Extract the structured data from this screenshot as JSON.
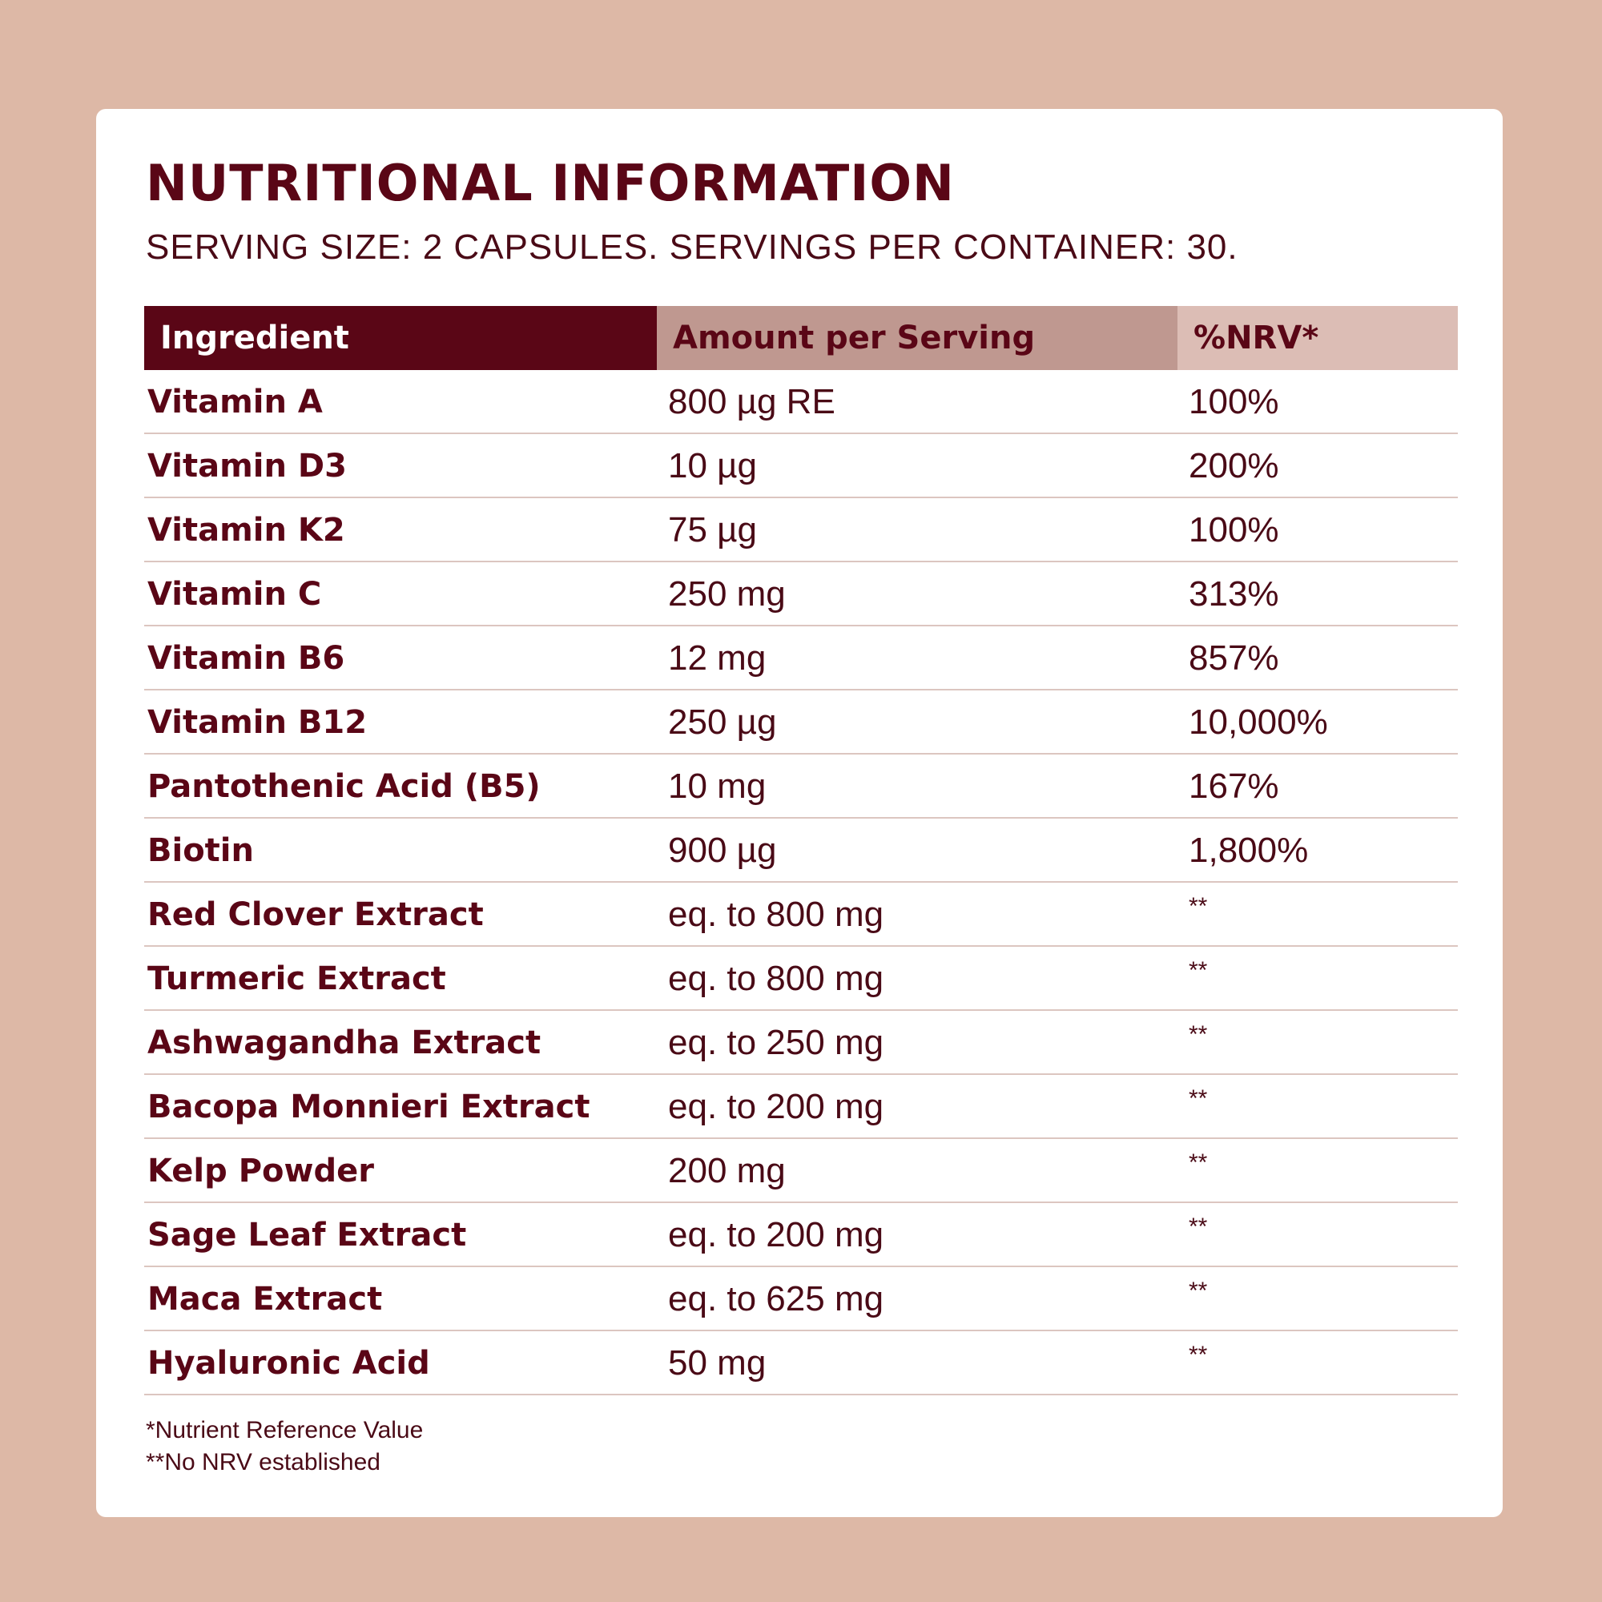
{
  "title": "NUTRITIONAL INFORMATION",
  "subtitle": "SERVING SIZE: 2 CAPSULES. SERVINGS PER CONTAINER: 30.",
  "table": {
    "headers": {
      "ingredient": "Ingredient",
      "amount": "Amount per Serving",
      "nrv": "%NRV*"
    },
    "rows": [
      {
        "ingredient": "Vitamin A",
        "amount": "800 µg RE",
        "nrv": "100%"
      },
      {
        "ingredient": "Vitamin D3",
        "amount": "10 µg",
        "nrv": "200%"
      },
      {
        "ingredient": "Vitamin K2",
        "amount": "75 µg",
        "nrv": "100%"
      },
      {
        "ingredient": "Vitamin C",
        "amount": "250 mg",
        "nrv": "313%"
      },
      {
        "ingredient": "Vitamin B6",
        "amount": "12 mg",
        "nrv": "857%"
      },
      {
        "ingredient": "Vitamin B12",
        "amount": "250 µg",
        "nrv": "10,000%"
      },
      {
        "ingredient": "Pantothenic Acid (B5)",
        "amount": "10 mg",
        "nrv": "167%"
      },
      {
        "ingredient": "Biotin",
        "amount": "900 µg",
        "nrv": "1,800%"
      },
      {
        "ingredient": "Red Clover Extract",
        "amount": "eq. to 800 mg",
        "nrv": "**"
      },
      {
        "ingredient": "Turmeric Extract",
        "amount": "eq. to 800 mg",
        "nrv": "**"
      },
      {
        "ingredient": "Ashwagandha Extract",
        "amount": "eq. to 250 mg",
        "nrv": "**"
      },
      {
        "ingredient": "Bacopa Monnieri Extract",
        "amount": "eq. to 200 mg",
        "nrv": "**"
      },
      {
        "ingredient": "Kelp Powder",
        "amount": "200 mg",
        "nrv": "**"
      },
      {
        "ingredient": "Sage Leaf Extract",
        "amount": "eq. to 200 mg",
        "nrv": "**"
      },
      {
        "ingredient": "Maca Extract",
        "amount": "eq. to 625 mg",
        "nrv": "**"
      },
      {
        "ingredient": "Hyaluronic Acid",
        "amount": "50 mg",
        "nrv": "**"
      }
    ]
  },
  "footnotes": [
    "*Nutrient Reference Value",
    "**No NRV established"
  ],
  "colors": {
    "background": "#ddb8a6",
    "accent": "#5a0616",
    "header_mid": "#bf9890",
    "header_light": "#dcbdb5"
  }
}
